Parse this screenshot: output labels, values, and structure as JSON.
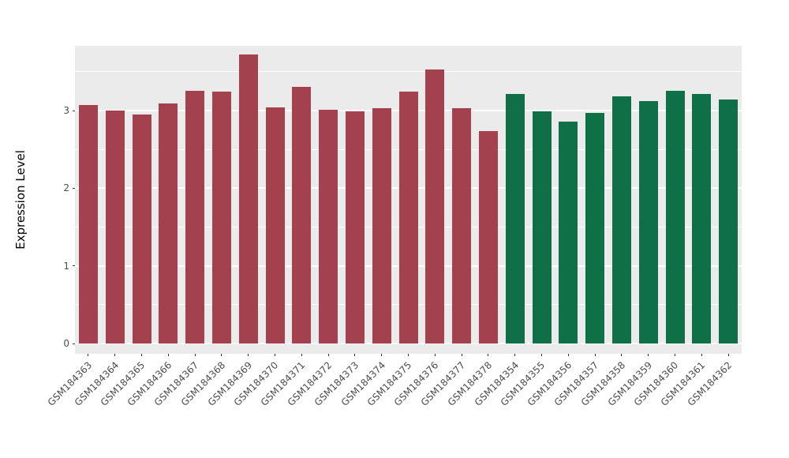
{
  "chart_data": {
    "type": "bar",
    "title": "",
    "xlabel": "",
    "ylabel": "Expression Level",
    "ylim": [
      0,
      3.83
    ],
    "yticks": [
      0,
      1,
      2,
      3
    ],
    "grid": "on",
    "legend": "none",
    "panel_bg": "#EBEBEB",
    "grid_color": "#FFFFFF",
    "categories": [
      "GSM184363",
      "GSM184364",
      "GSM184365",
      "GSM184366",
      "GSM184367",
      "GSM184368",
      "GSM184369",
      "GSM184370",
      "GSM184371",
      "GSM184372",
      "GSM184373",
      "GSM184374",
      "GSM184375",
      "GSM184376",
      "GSM184377",
      "GSM184378",
      "GSM184354",
      "GSM184355",
      "GSM184356",
      "GSM184357",
      "GSM184358",
      "GSM184359",
      "GSM184360",
      "GSM184361",
      "GSM184362"
    ],
    "values": [
      3.07,
      3.0,
      2.95,
      3.09,
      3.26,
      3.25,
      3.72,
      3.04,
      3.31,
      3.01,
      2.99,
      3.03,
      3.25,
      3.53,
      3.03,
      2.74,
      3.21,
      2.99,
      2.86,
      2.97,
      3.18,
      3.12,
      3.26,
      3.21,
      3.14
    ],
    "group_colors": [
      "#A3414F",
      "#0F7047"
    ],
    "group_index": [
      0,
      0,
      0,
      0,
      0,
      0,
      0,
      0,
      0,
      0,
      0,
      0,
      0,
      0,
      0,
      0,
      1,
      1,
      1,
      1,
      1,
      1,
      1,
      1,
      1
    ]
  }
}
